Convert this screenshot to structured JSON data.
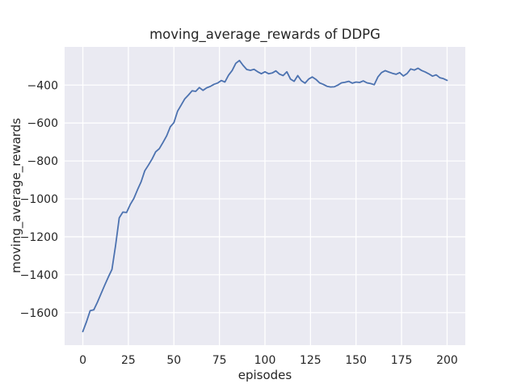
{
  "figure": {
    "title": "moving_average_rewards of DDPG",
    "xlabel": "episodes",
    "ylabel": "moving_average_rewards"
  },
  "chart_data": {
    "type": "line",
    "title": "moving_average_rewards of DDPG",
    "xlabel": "episodes",
    "ylabel": "moving_average_rewards",
    "legend": "none",
    "grid": true,
    "style": "seaborn-darkgrid",
    "xticks": [
      0,
      25,
      50,
      75,
      100,
      125,
      150,
      175,
      200
    ],
    "yticks": [
      -400,
      -600,
      -800,
      -1000,
      -1200,
      -1400,
      -1600
    ],
    "xlim": [
      -10,
      210
    ],
    "ylim": [
      -1771.5,
      -198.5
    ],
    "colors": {
      "line": "#4C72B0",
      "plot_background": "#EAEAF2",
      "gridline": "#FFFFFF",
      "text": "#262626",
      "figure_background": "#FFFFFF"
    },
    "x": [
      0,
      2,
      4,
      6,
      8,
      10,
      12,
      14,
      16,
      18,
      20,
      22,
      24,
      26,
      28,
      30,
      32,
      34,
      36,
      38,
      40,
      42,
      44,
      46,
      48,
      50,
      52,
      54,
      56,
      58,
      60,
      62,
      64,
      66,
      68,
      70,
      72,
      74,
      76,
      78,
      80,
      82,
      84,
      86,
      88,
      90,
      92,
      94,
      96,
      98,
      100,
      102,
      104,
      106,
      108,
      110,
      112,
      114,
      116,
      118,
      120,
      122,
      124,
      126,
      128,
      130,
      132,
      134,
      136,
      138,
      140,
      142,
      144,
      146,
      148,
      150,
      152,
      154,
      156,
      158,
      160,
      162,
      164,
      166,
      168,
      170,
      172,
      174,
      176,
      178,
      180,
      182,
      184,
      186,
      188,
      190,
      192,
      194,
      196,
      198,
      200
    ],
    "values": [
      -1700,
      -1648,
      -1590,
      -1585,
      -1545,
      -1500,
      -1455,
      -1412,
      -1372,
      -1245,
      -1100,
      -1070,
      -1072,
      -1030,
      -998,
      -952,
      -910,
      -852,
      -822,
      -790,
      -752,
      -735,
      -703,
      -668,
      -620,
      -598,
      -538,
      -505,
      -472,
      -452,
      -430,
      -433,
      -413,
      -428,
      -414,
      -407,
      -396,
      -389,
      -376,
      -384,
      -348,
      -323,
      -285,
      -270,
      -296,
      -318,
      -322,
      -317,
      -330,
      -340,
      -330,
      -340,
      -336,
      -325,
      -342,
      -350,
      -330,
      -368,
      -380,
      -350,
      -377,
      -390,
      -368,
      -357,
      -370,
      -388,
      -396,
      -406,
      -410,
      -409,
      -400,
      -388,
      -385,
      -380,
      -390,
      -384,
      -386,
      -378,
      -388,
      -392,
      -398,
      -357,
      -334,
      -324,
      -331,
      -338,
      -343,
      -334,
      -352,
      -339,
      -315,
      -321,
      -311,
      -323,
      -331,
      -341,
      -353,
      -346,
      -361,
      -366,
      -375
    ]
  }
}
